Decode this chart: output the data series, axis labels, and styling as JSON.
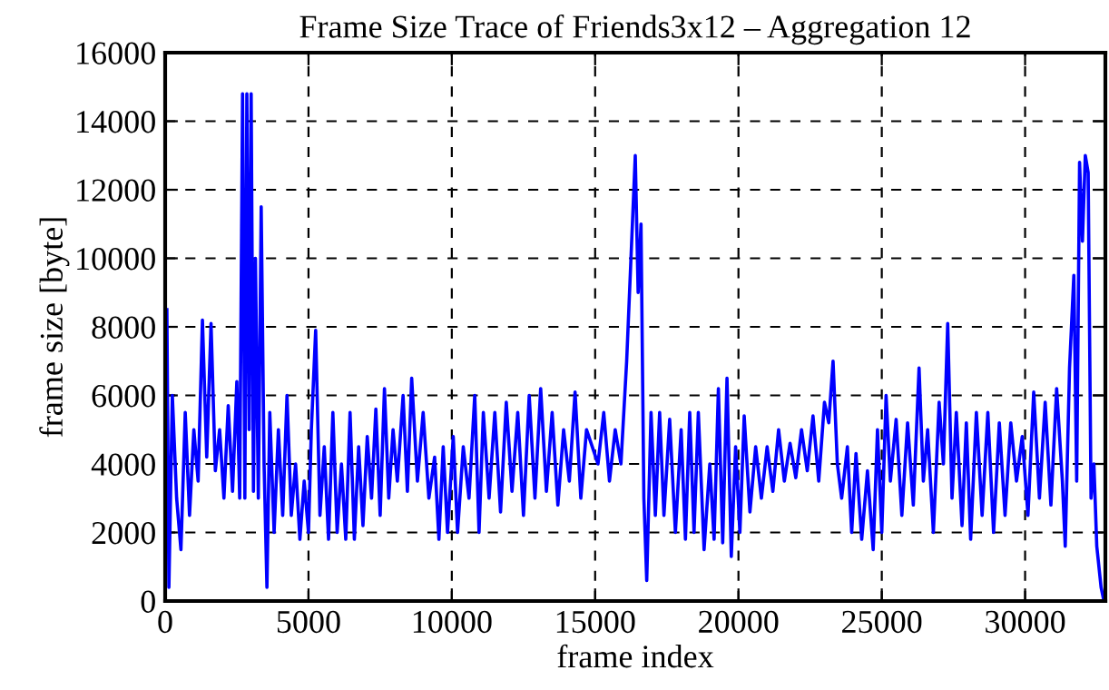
{
  "chart_data": {
    "type": "line",
    "title": "Frame Size Trace of Friends3x12 – Aggregation 12",
    "xlabel": "frame index",
    "ylabel": "frame size [byte]",
    "xlim": [
      0,
      32800
    ],
    "ylim": [
      0,
      16000
    ],
    "xticks": [
      0,
      5000,
      10000,
      15000,
      20000,
      25000,
      30000
    ],
    "yticks": [
      0,
      2000,
      4000,
      6000,
      8000,
      10000,
      12000,
      14000,
      16000
    ],
    "grid": true,
    "legend": false,
    "series": [
      {
        "color": "#0000ff",
        "x": [
          60,
          130,
          250,
          400,
          550,
          700,
          850,
          1000,
          1150,
          1300,
          1450,
          1600,
          1750,
          1900,
          2050,
          2200,
          2350,
          2500,
          2600,
          2700,
          2780,
          2850,
          2930,
          3000,
          3080,
          3150,
          3250,
          3350,
          3450,
          3550,
          3650,
          3800,
          3950,
          4100,
          4250,
          4400,
          4550,
          4700,
          4850,
          5000,
          5100,
          5250,
          5400,
          5550,
          5700,
          5850,
          6000,
          6150,
          6300,
          6450,
          6600,
          6750,
          6900,
          7050,
          7200,
          7350,
          7500,
          7650,
          7800,
          7950,
          8100,
          8300,
          8450,
          8600,
          8800,
          9000,
          9200,
          9400,
          9550,
          9700,
          9850,
          10050,
          10200,
          10400,
          10600,
          10800,
          10950,
          11100,
          11300,
          11500,
          11700,
          11900,
          12100,
          12300,
          12500,
          12700,
          12900,
          13100,
          13300,
          13500,
          13700,
          13900,
          14100,
          14300,
          14500,
          14700,
          14900,
          15100,
          15300,
          15500,
          15700,
          15900,
          16100,
          16250,
          16400,
          16500,
          16600,
          16700,
          16800,
          16950,
          17100,
          17250,
          17400,
          17600,
          17800,
          18000,
          18150,
          18300,
          18450,
          18600,
          18800,
          19000,
          19150,
          19300,
          19450,
          19600,
          19750,
          19900,
          20050,
          20200,
          20400,
          20600,
          20800,
          21000,
          21200,
          21400,
          21600,
          21800,
          22000,
          22200,
          22400,
          22600,
          22800,
          23000,
          23150,
          23300,
          23450,
          23600,
          23800,
          23950,
          24100,
          24300,
          24500,
          24700,
          24850,
          25000,
          25150,
          25300,
          25500,
          25700,
          25900,
          26100,
          26300,
          26450,
          26600,
          26800,
          27000,
          27150,
          27300,
          27450,
          27600,
          27800,
          27950,
          28100,
          28300,
          28500,
          28700,
          28900,
          29100,
          29300,
          29500,
          29700,
          29900,
          30100,
          30300,
          30500,
          30700,
          30900,
          31100,
          31300,
          31400,
          31550,
          31700,
          31800,
          31900,
          32000,
          32100,
          32200,
          32300,
          32400,
          32500,
          32650,
          32750
        ],
        "values": [
          8500,
          400,
          6000,
          3000,
          1500,
          5500,
          2500,
          5000,
          3500,
          8200,
          4200,
          8100,
          3800,
          5000,
          3000,
          5700,
          3200,
          6400,
          3000,
          14800,
          3000,
          14800,
          5000,
          14800,
          3200,
          10000,
          3000,
          11500,
          4000,
          400,
          5500,
          2000,
          5000,
          2500,
          6000,
          2500,
          4000,
          1800,
          3500,
          2000,
          5000,
          7900,
          2500,
          4500,
          1800,
          5500,
          2000,
          4000,
          1800,
          5500,
          1800,
          4500,
          2200,
          4800,
          3000,
          5600,
          2500,
          6200,
          3000,
          5000,
          3500,
          6000,
          3200,
          6500,
          3500,
          5500,
          3000,
          4200,
          1800,
          4500,
          2000,
          4800,
          2000,
          4500,
          3000,
          6000,
          2000,
          5500,
          3000,
          5500,
          2600,
          5800,
          3200,
          5500,
          2500,
          6000,
          3000,
          6200,
          3200,
          5500,
          2800,
          5000,
          3500,
          6100,
          3000,
          5000,
          4500,
          4000,
          5500,
          3500,
          5000,
          4000,
          7000,
          10000,
          13000,
          9000,
          11000,
          3000,
          600,
          5500,
          2500,
          5500,
          2500,
          5300,
          2000,
          5000,
          1800,
          5500,
          2000,
          5500,
          1500,
          4000,
          1800,
          6200,
          1700,
          6500,
          1300,
          4500,
          2000,
          5400,
          2600,
          4500,
          3000,
          4500,
          3200,
          5000,
          3500,
          4600,
          3600,
          5000,
          3800,
          5400,
          3500,
          5800,
          5200,
          7000,
          4000,
          3000,
          4500,
          2000,
          4300,
          1800,
          3800,
          1500,
          5000,
          2000,
          6000,
          3500,
          5300,
          2500,
          5200,
          2800,
          6800,
          3500,
          5000,
          2000,
          5800,
          4000,
          8100,
          3000,
          5500,
          2200,
          5200,
          1800,
          5500,
          2500,
          5500,
          2000,
          5200,
          2500,
          5200,
          3500,
          4800,
          2500,
          6100,
          3000,
          5800,
          2800,
          6200,
          3500,
          1600,
          6800,
          9500,
          3500,
          12800,
          10500,
          13000,
          12500,
          3000,
          4000,
          1600,
          400,
          0
        ]
      }
    ]
  }
}
